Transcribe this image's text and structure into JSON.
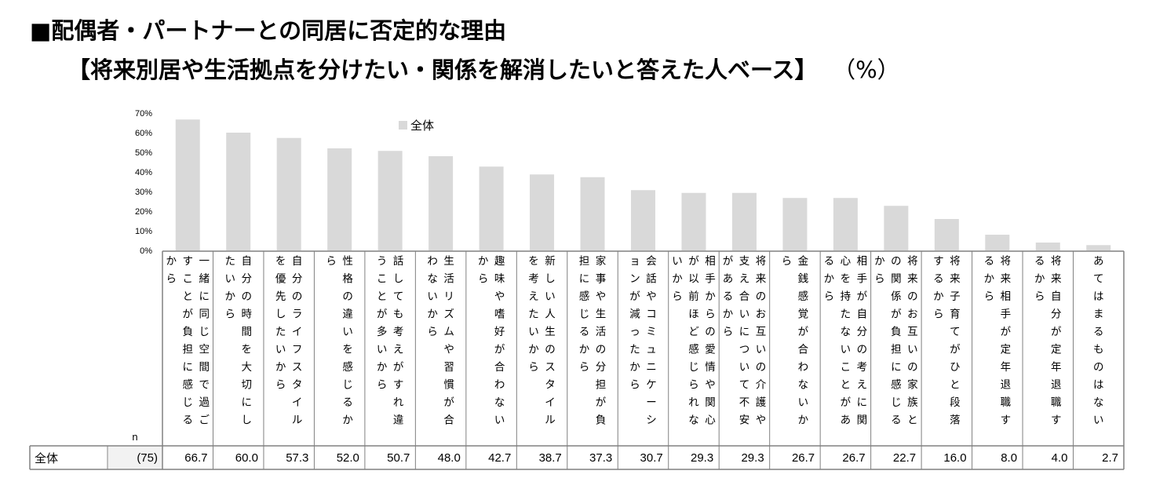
{
  "title": "■配偶者・パートナーとの同居に否定的な理由",
  "subtitle": "【将来別居や生活拠点を分けたい・関係を解消したいと答えた人ベース】",
  "unit": "（%）",
  "n_header": "n",
  "row_label": "全体",
  "row_n": "(75)",
  "colors": {
    "bar": "#d9d9d9",
    "grid_border": "#808080",
    "n_cell_bg": "#f2f2f2"
  },
  "chart_data": {
    "type": "bar",
    "categories": [
      "一緒に同じ空間で過ごすことが負担に感じるから",
      "自分の時間を大切にしたいから",
      "自分のライフスタイルを優先したいから",
      "性格の違いを感じるから",
      "話しても考えがすれ違うことが多いから",
      "生活リズムや習慣が合わないから",
      "趣味や嗜好が合わないから",
      "新しい人生のスタイルを考えたいから",
      "家事や生活の分担が負担に感じるから",
      "会話やコミュニケーションが減ったから",
      "相手からの愛情や関心が以前ほど感じられないから",
      "将来のお互いの介護や支え合いについて不安があるから",
      "金銭感覚が合わないから",
      "相手が自分の考えに関心を持たないことがあるから",
      "将来のお互いの家族との関係が負担に感じるから",
      "将来子育てがひと段落するから",
      "将来相手が定年退職するから",
      "将来自分が定年退職するから",
      "あてはまるものはない"
    ],
    "series": [
      {
        "name": "全体",
        "values": [
          66.7,
          60.0,
          57.3,
          52.0,
          50.7,
          48.0,
          42.7,
          38.7,
          37.3,
          30.7,
          29.3,
          29.3,
          26.7,
          26.7,
          22.7,
          16.0,
          8.0,
          4.0,
          2.7
        ],
        "labels": [
          "66.7",
          "60.0",
          "57.3",
          "52.0",
          "50.7",
          "48.0",
          "42.7",
          "38.7",
          "37.3",
          "30.7",
          "29.3",
          "29.3",
          "26.7",
          "26.7",
          "22.7",
          "16.0",
          "8.0",
          "4.0",
          "2.7"
        ]
      }
    ],
    "ylim": [
      0,
      70
    ],
    "yticks": [
      "0%",
      "10%",
      "20%",
      "30%",
      "40%",
      "50%",
      "60%",
      "70%"
    ],
    "grid": false,
    "legend": "top-center"
  }
}
